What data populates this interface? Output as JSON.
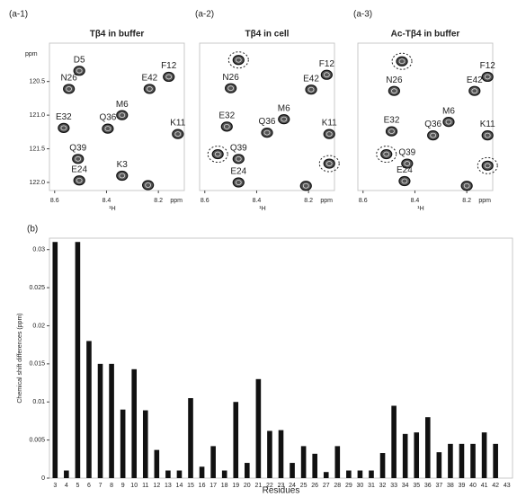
{
  "chart_data": [
    {
      "type": "spectrum",
      "panel": "(a-1)",
      "title": "Tβ4 in buffer",
      "xlabel": "¹H",
      "xunit": "ppm",
      "ylabel": "ppm",
      "xlim": [
        8.62,
        8.1
      ],
      "xticks": [
        8.6,
        8.4,
        8.2
      ],
      "ylim": [
        122.12,
        119.93
      ],
      "yticks": [
        120.5,
        {
          "value": 121,
          "label": "121.0"
        },
        121.5,
        {
          "value": 122,
          "label": "122.0"
        }
      ],
      "peaks": [
        {
          "label": "D5",
          "x": 8.505,
          "y": 120.34,
          "circled": false
        },
        {
          "label": "N26",
          "x": 8.545,
          "y": 120.61,
          "circled": false
        },
        {
          "label": "E42",
          "x": 8.234,
          "y": 120.61,
          "circled": false
        },
        {
          "label": "F12",
          "x": 8.16,
          "y": 120.43,
          "circled": false
        },
        {
          "label": "M6",
          "x": 8.34,
          "y": 121.0,
          "circled": false
        },
        {
          "label": "E32",
          "x": 8.565,
          "y": 121.19,
          "circled": false
        },
        {
          "label": "Q36",
          "x": 8.395,
          "y": 121.2,
          "circled": false
        },
        {
          "label": "K11",
          "x": 8.125,
          "y": 121.28,
          "circled": false
        },
        {
          "label": "Q39",
          "x": 8.51,
          "y": 121.65,
          "circled": false
        },
        {
          "label": "K3",
          "x": 8.34,
          "y": 121.9,
          "circled": false
        },
        {
          "label": "E24",
          "x": 8.505,
          "y": 121.97,
          "circled": false
        },
        {
          "label": null,
          "x": 8.24,
          "y": 122.04,
          "circled": false
        }
      ]
    },
    {
      "type": "spectrum",
      "panel": "(a-2)",
      "title": "Tβ4 in cell",
      "xlabel": "¹H",
      "xunit": "ppm",
      "xlim": [
        8.62,
        8.1
      ],
      "xticks": [
        8.6,
        8.4,
        8.2
      ],
      "ylim": [
        122.12,
        119.93
      ],
      "peaks": [
        {
          "label": null,
          "x": 8.47,
          "y": 120.18,
          "circled": true
        },
        {
          "label": "N26",
          "x": 8.5,
          "y": 120.6,
          "circled": false
        },
        {
          "label": "E42",
          "x": 8.19,
          "y": 120.62,
          "circled": false
        },
        {
          "label": "F12",
          "x": 8.13,
          "y": 120.4,
          "circled": false
        },
        {
          "label": "M6",
          "x": 8.295,
          "y": 121.06,
          "circled": false
        },
        {
          "label": "E32",
          "x": 8.515,
          "y": 121.17,
          "circled": false
        },
        {
          "label": "Q36",
          "x": 8.36,
          "y": 121.26,
          "circled": false
        },
        {
          "label": "K11",
          "x": 8.12,
          "y": 121.28,
          "circled": false
        },
        {
          "label": "Q39",
          "x": 8.47,
          "y": 121.65,
          "circled": false
        },
        {
          "label": null,
          "x": 8.55,
          "y": 121.58,
          "circled": true
        },
        {
          "label": null,
          "x": 8.12,
          "y": 121.72,
          "circled": true
        },
        {
          "label": "E24",
          "x": 8.47,
          "y": 122.0,
          "circled": false
        },
        {
          "label": null,
          "x": 8.21,
          "y": 122.05,
          "circled": false
        }
      ]
    },
    {
      "type": "spectrum",
      "panel": "(a-3)",
      "title": "Ac-Tβ4 in buffer",
      "xlabel": "¹H",
      "xunit": "ppm",
      "xlim": [
        8.62,
        8.1
      ],
      "xticks": [
        8.6,
        8.4,
        8.2
      ],
      "ylim": [
        122.12,
        119.93
      ],
      "peaks": [
        {
          "label": null,
          "x": 8.45,
          "y": 120.2,
          "circled": true
        },
        {
          "label": "N26",
          "x": 8.48,
          "y": 120.64,
          "circled": false
        },
        {
          "label": "E42",
          "x": 8.17,
          "y": 120.64,
          "circled": false
        },
        {
          "label": "F12",
          "x": 8.12,
          "y": 120.43,
          "circled": false
        },
        {
          "label": "M6",
          "x": 8.27,
          "y": 121.1,
          "circled": false
        },
        {
          "label": "E32",
          "x": 8.49,
          "y": 121.24,
          "circled": false
        },
        {
          "label": "Q36",
          "x": 8.33,
          "y": 121.3,
          "circled": false
        },
        {
          "label": "K11",
          "x": 8.12,
          "y": 121.3,
          "circled": false
        },
        {
          "label": "Q39",
          "x": 8.43,
          "y": 121.72,
          "circled": false
        },
        {
          "label": null,
          "x": 8.51,
          "y": 121.58,
          "circled": true
        },
        {
          "label": null,
          "x": 8.12,
          "y": 121.75,
          "circled": true
        },
        {
          "label": "E24",
          "x": 8.44,
          "y": 121.98,
          "circled": false
        },
        {
          "label": null,
          "x": 8.2,
          "y": 122.05,
          "circled": false
        }
      ]
    },
    {
      "type": "bar",
      "panel": "(b)",
      "xlabel": "Residues",
      "ylabel": "Chemical shift differences (ppm)",
      "color": "#111111",
      "categories": [
        "3",
        "4",
        "5",
        "6",
        "7",
        "8",
        "9",
        "10",
        "11",
        "12",
        "13",
        "14",
        "15",
        "16",
        "17",
        "18",
        "19",
        "20",
        "21",
        "22",
        "23",
        "24",
        "25",
        "26",
        "27",
        "28",
        "29",
        "30",
        "31",
        "32",
        "33",
        "34",
        "35",
        "36",
        "37",
        "38",
        "39",
        "40",
        "41",
        "42",
        "43"
      ],
      "values": [
        0.031,
        0.001,
        0.031,
        0.018,
        0.015,
        0.015,
        0.009,
        0.0143,
        0.0089,
        0.0037,
        0.001,
        0.001,
        0.0105,
        0.0015,
        0.0042,
        0.001,
        0.01,
        0.002,
        0.013,
        0.0062,
        0.0063,
        0.002,
        0.0042,
        0.0032,
        0.0008,
        0.0042,
        0.001,
        0.001,
        0.001,
        0.0033,
        0.0095,
        0.0058,
        0.006,
        0.008,
        0.0034,
        0.0045,
        0.0045,
        0.0045,
        0.006,
        0.0045,
        null
      ],
      "ylim": [
        0,
        0.0315
      ],
      "yticks": [
        0,
        0.005,
        0.01,
        0.015,
        0.02,
        0.025,
        0.03
      ]
    }
  ]
}
